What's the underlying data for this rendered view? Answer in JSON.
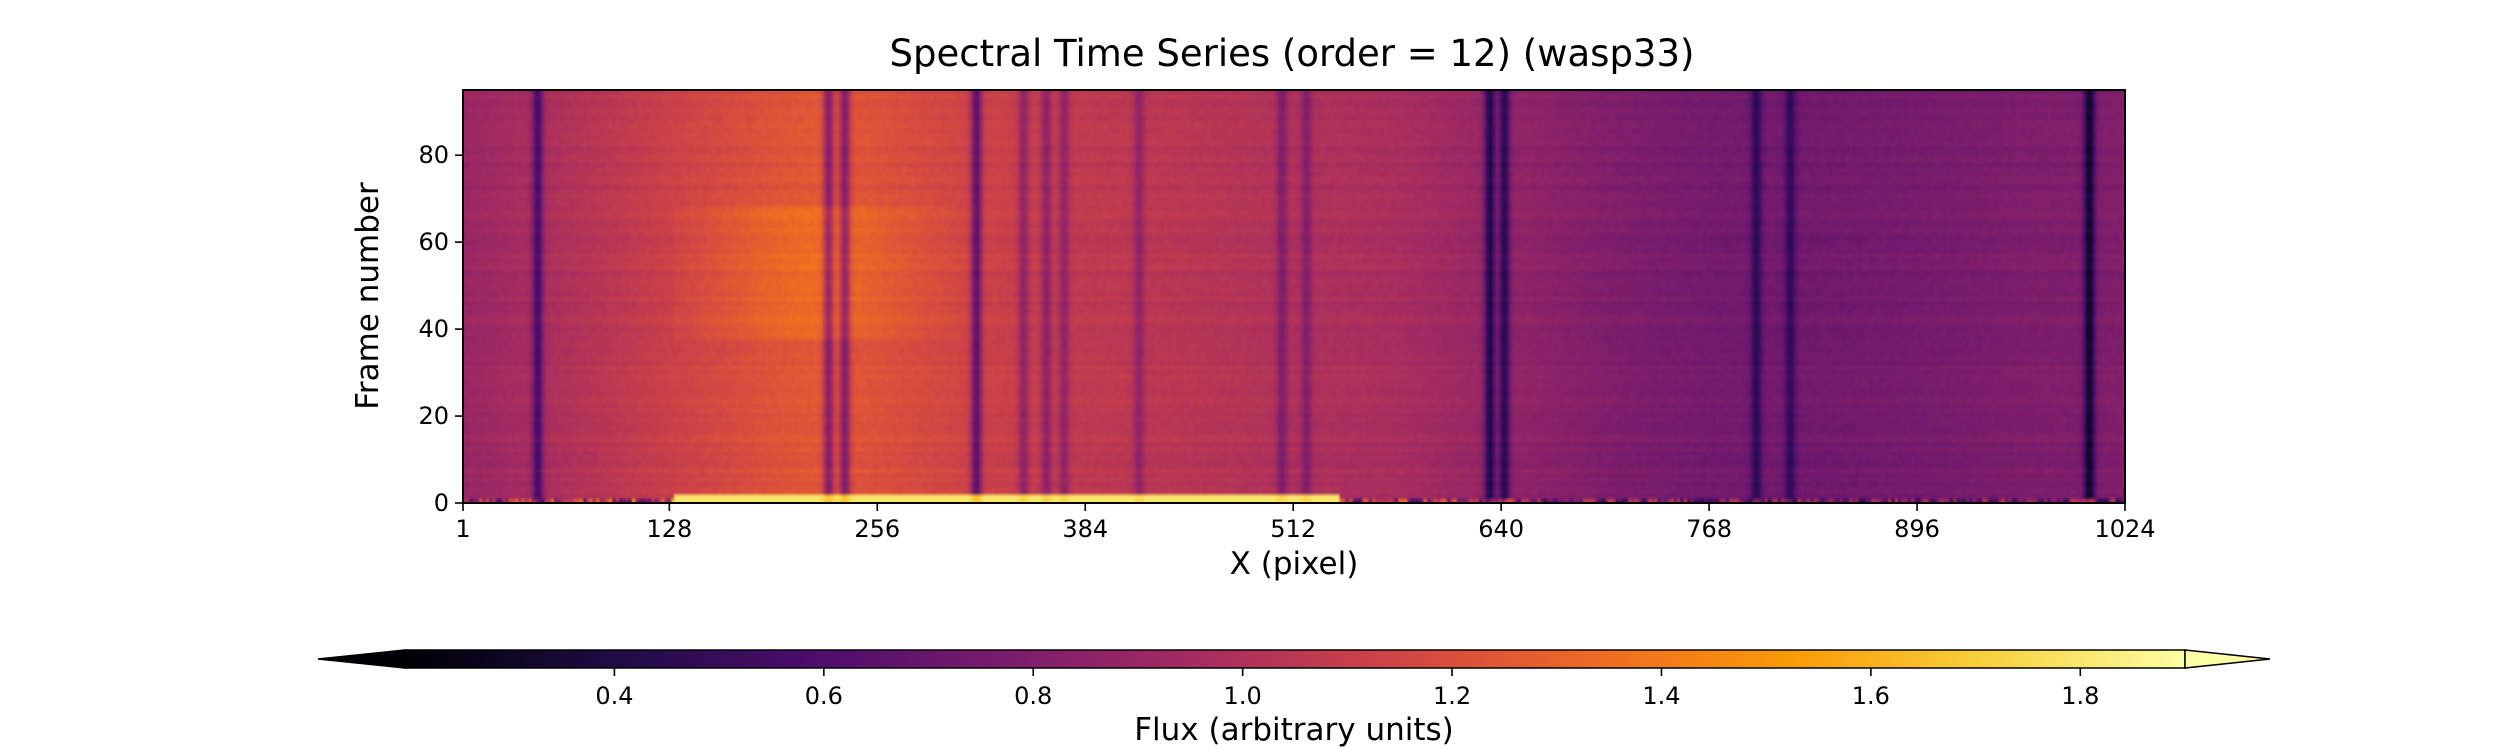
{
  "chart_data": {
    "type": "heatmap",
    "title": "Spectral Time Series (order = 12) (wasp33)",
    "xlabel": "X (pixel)",
    "ylabel": "Frame number",
    "xlim": [
      1,
      1024
    ],
    "ylim": [
      0,
      95
    ],
    "x_ticks": [
      "1",
      "128",
      "256",
      "384",
      "512",
      "640",
      "768",
      "896",
      "1024"
    ],
    "y_ticks": [
      "0",
      "20",
      "40",
      "60",
      "80"
    ],
    "colormap": "inferno",
    "colorbar": {
      "label": "Flux (arbitrary units)",
      "range": [
        0.2,
        1.9
      ],
      "extend": "both",
      "ticks": [
        "0.4",
        "0.6",
        "0.8",
        "1.0",
        "1.2",
        "1.4",
        "1.6",
        "1.8"
      ]
    },
    "continuum_profile": {
      "x": [
        1,
        64,
        128,
        192,
        224,
        256,
        320,
        384,
        448,
        512,
        576,
        640,
        704,
        768,
        832,
        896,
        960,
        1024
      ],
      "flux": [
        0.9,
        1.0,
        1.12,
        1.22,
        1.25,
        1.21,
        1.13,
        1.07,
        1.04,
        1.0,
        0.97,
        0.88,
        0.8,
        0.75,
        0.74,
        0.76,
        0.79,
        0.8
      ]
    },
    "absorption_lines": [
      {
        "x": 47,
        "depth": 0.42
      },
      {
        "x": 226,
        "depth": 0.45
      },
      {
        "x": 236,
        "depth": 0.45
      },
      {
        "x": 317,
        "depth": 0.5
      },
      {
        "x": 346,
        "depth": 0.25
      },
      {
        "x": 360,
        "depth": 0.25
      },
      {
        "x": 371,
        "depth": 0.22
      },
      {
        "x": 417,
        "depth": 0.2
      },
      {
        "x": 505,
        "depth": 0.22
      },
      {
        "x": 520,
        "depth": 0.2
      },
      {
        "x": 633,
        "depth": 0.5
      },
      {
        "x": 642,
        "depth": 0.45
      },
      {
        "x": 797,
        "depth": 0.3
      },
      {
        "x": 818,
        "depth": 0.28
      },
      {
        "x": 1002,
        "depth": 0.5
      }
    ],
    "bright_bottom_frames": {
      "frames": [
        0,
        1
      ],
      "x_range": [
        130,
        540
      ],
      "flux": 1.8
    }
  },
  "colors": {
    "colormap_stops": [
      "#000004",
      "#1b0c41",
      "#4a0c6b",
      "#781c6d",
      "#a52c60",
      "#cf4446",
      "#ed6925",
      "#fb9b06",
      "#f7d13d",
      "#fcffa4"
    ]
  }
}
